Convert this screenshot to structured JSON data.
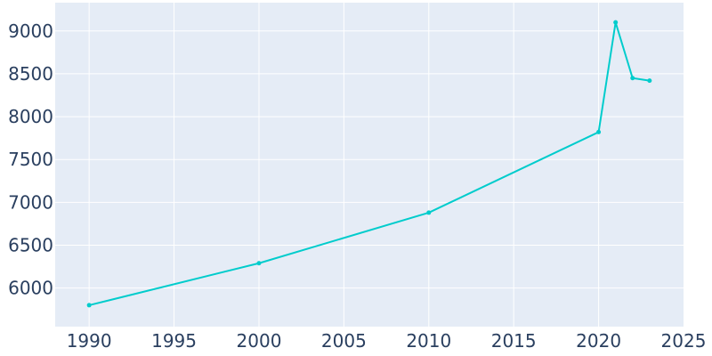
{
  "chart_data": {
    "type": "line",
    "title": "",
    "xlabel": "",
    "ylabel": "",
    "x": [
      1990,
      2000,
      2010,
      2020,
      2021,
      2022,
      2023
    ],
    "series": [
      {
        "values": [
          5800,
          6290,
          6880,
          7820,
          9100,
          8450,
          8420
        ]
      }
    ],
    "xlim": [
      1988,
      2025
    ],
    "ylim": [
      5550,
      9330
    ],
    "x_ticks": [
      1990,
      1995,
      2000,
      2005,
      2010,
      2015,
      2020,
      2025
    ],
    "y_ticks": [
      6000,
      6500,
      7000,
      7500,
      8000,
      8500,
      9000
    ],
    "grid": true,
    "legend": "none",
    "colors": {
      "line": "#00cccc",
      "plot_bg": "#e5ecf6",
      "grid": "#ffffff",
      "tick_text": "#2a3f5f"
    }
  }
}
